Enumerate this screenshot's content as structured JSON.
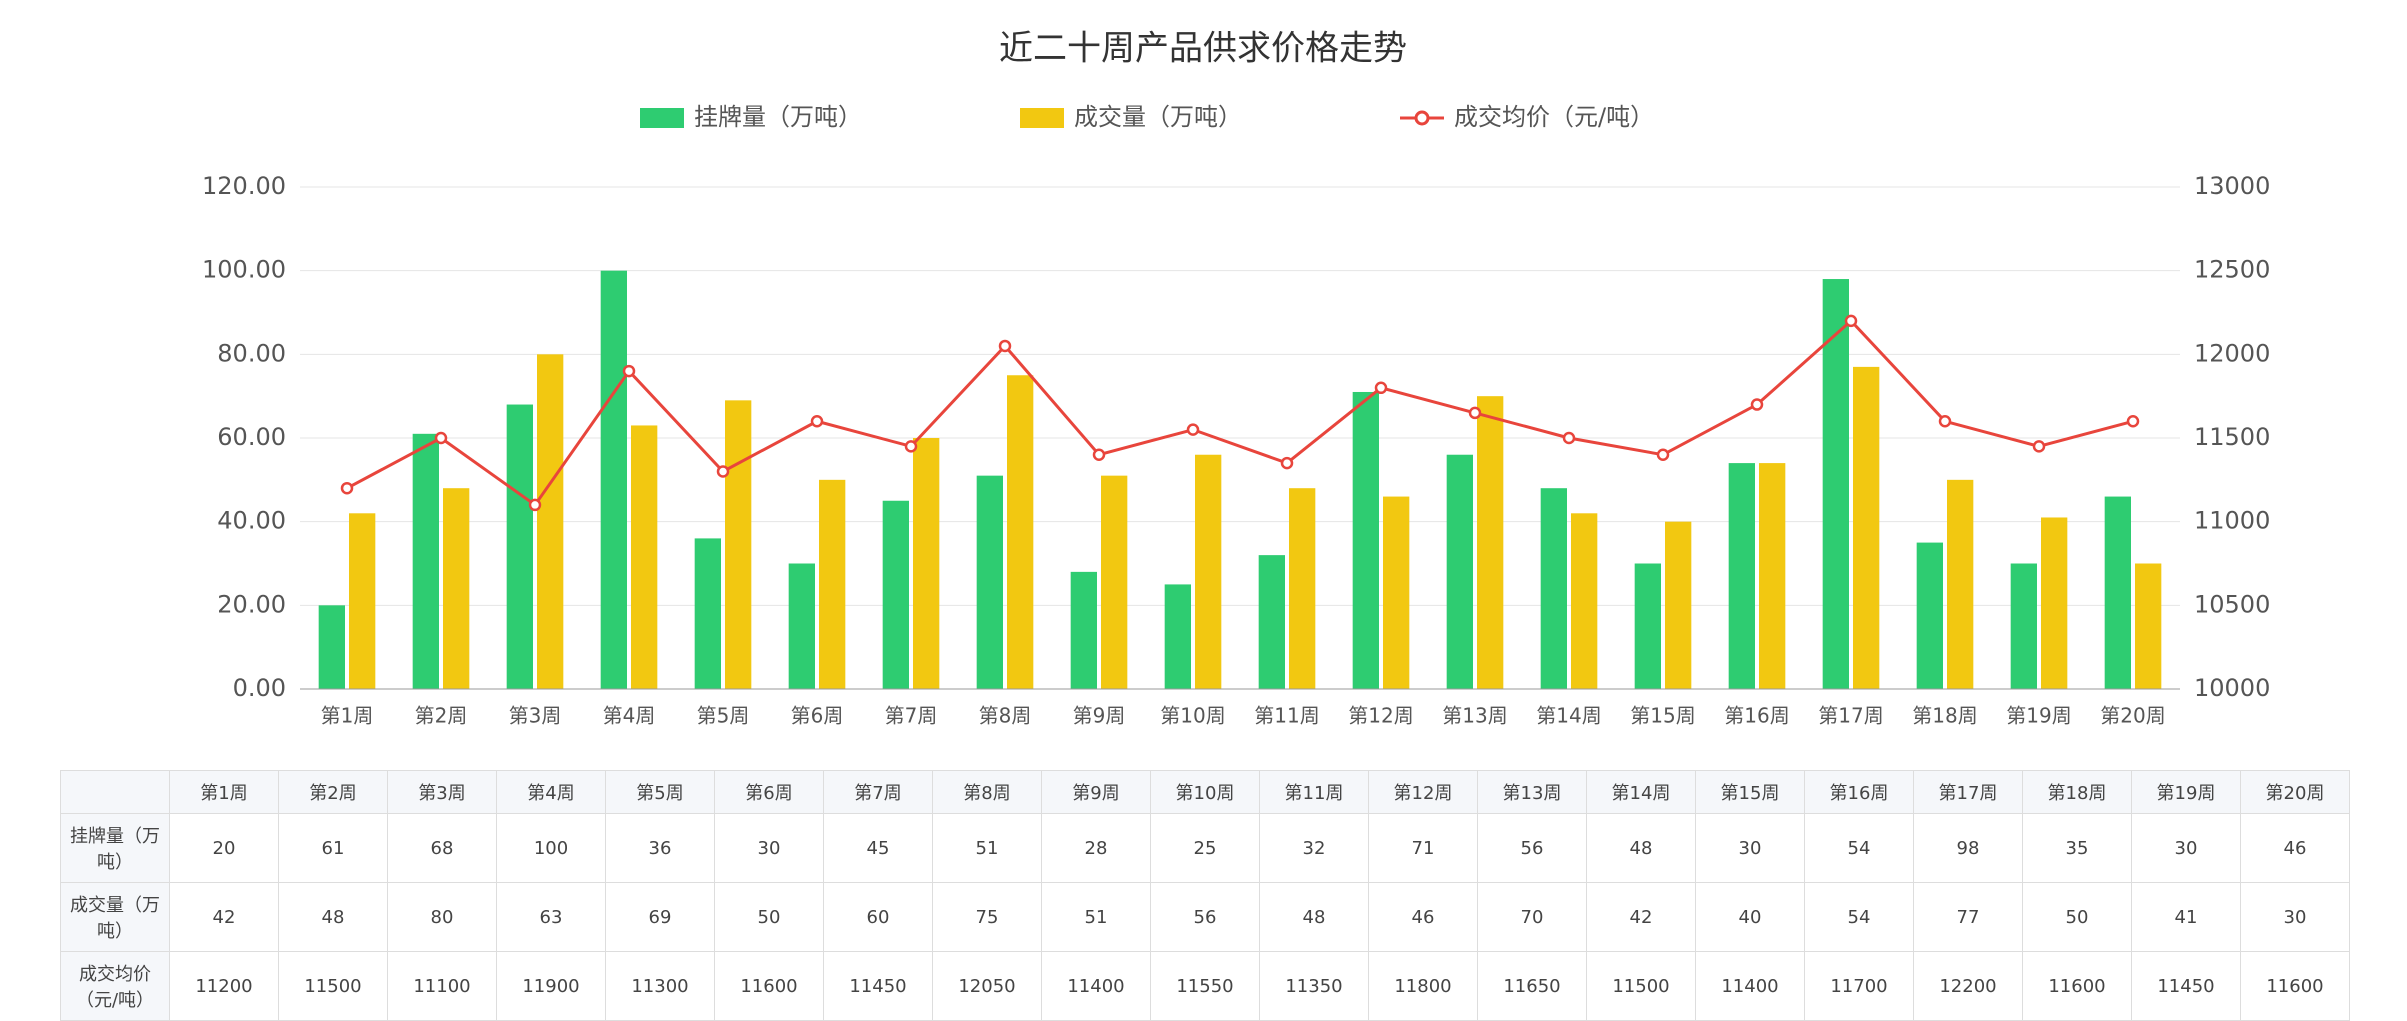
{
  "chart_data": {
    "type": "bar",
    "title": "近二十周产品供求价格走势",
    "categories": [
      "第1周",
      "第2周",
      "第3周",
      "第4周",
      "第5周",
      "第6周",
      "第7周",
      "第8周",
      "第9周",
      "第10周",
      "第11周",
      "第12周",
      "第13周",
      "第14周",
      "第15周",
      "第16周",
      "第17周",
      "第18周",
      "第19周",
      "第20周"
    ],
    "series": [
      {
        "name": "挂牌量（万吨）",
        "color": "#2ecc71",
        "values": [
          20,
          61,
          68,
          100,
          36,
          30,
          45,
          51,
          28,
          25,
          32,
          71,
          56,
          48,
          30,
          54,
          98,
          35,
          30,
          46
        ]
      },
      {
        "name": "成交量（万吨）",
        "color": "#f2c811",
        "values": [
          42,
          48,
          80,
          63,
          69,
          50,
          60,
          75,
          51,
          56,
          48,
          46,
          70,
          42,
          40,
          54,
          77,
          50,
          41,
          30
        ]
      },
      {
        "name": "成交均价（元/吨）",
        "color": "#e8453c",
        "axis": "y2",
        "values": [
          11200,
          11500,
          11100,
          11900,
          11300,
          11600,
          11450,
          12050,
          11400,
          11550,
          11350,
          11800,
          11650,
          11500,
          11400,
          11700,
          12200,
          11600,
          11450,
          11600
        ]
      }
    ],
    "ylim": [
      0,
      120
    ],
    "yticks": [
      {
        "value": 0,
        "label": "0.00"
      },
      {
        "value": 20,
        "label": "20.00"
      },
      {
        "value": 40,
        "label": "40.00"
      },
      {
        "value": 60,
        "label": "60.00"
      },
      {
        "value": 80,
        "label": "80.00"
      },
      {
        "value": 100,
        "label": "100.00"
      },
      {
        "value": 120,
        "label": "120.00"
      }
    ],
    "y2lim": [
      10000,
      13000
    ],
    "y2ticks": [
      10000,
      10500,
      11000,
      11500,
      12000,
      12500,
      13000
    ],
    "grid": true
  }
}
